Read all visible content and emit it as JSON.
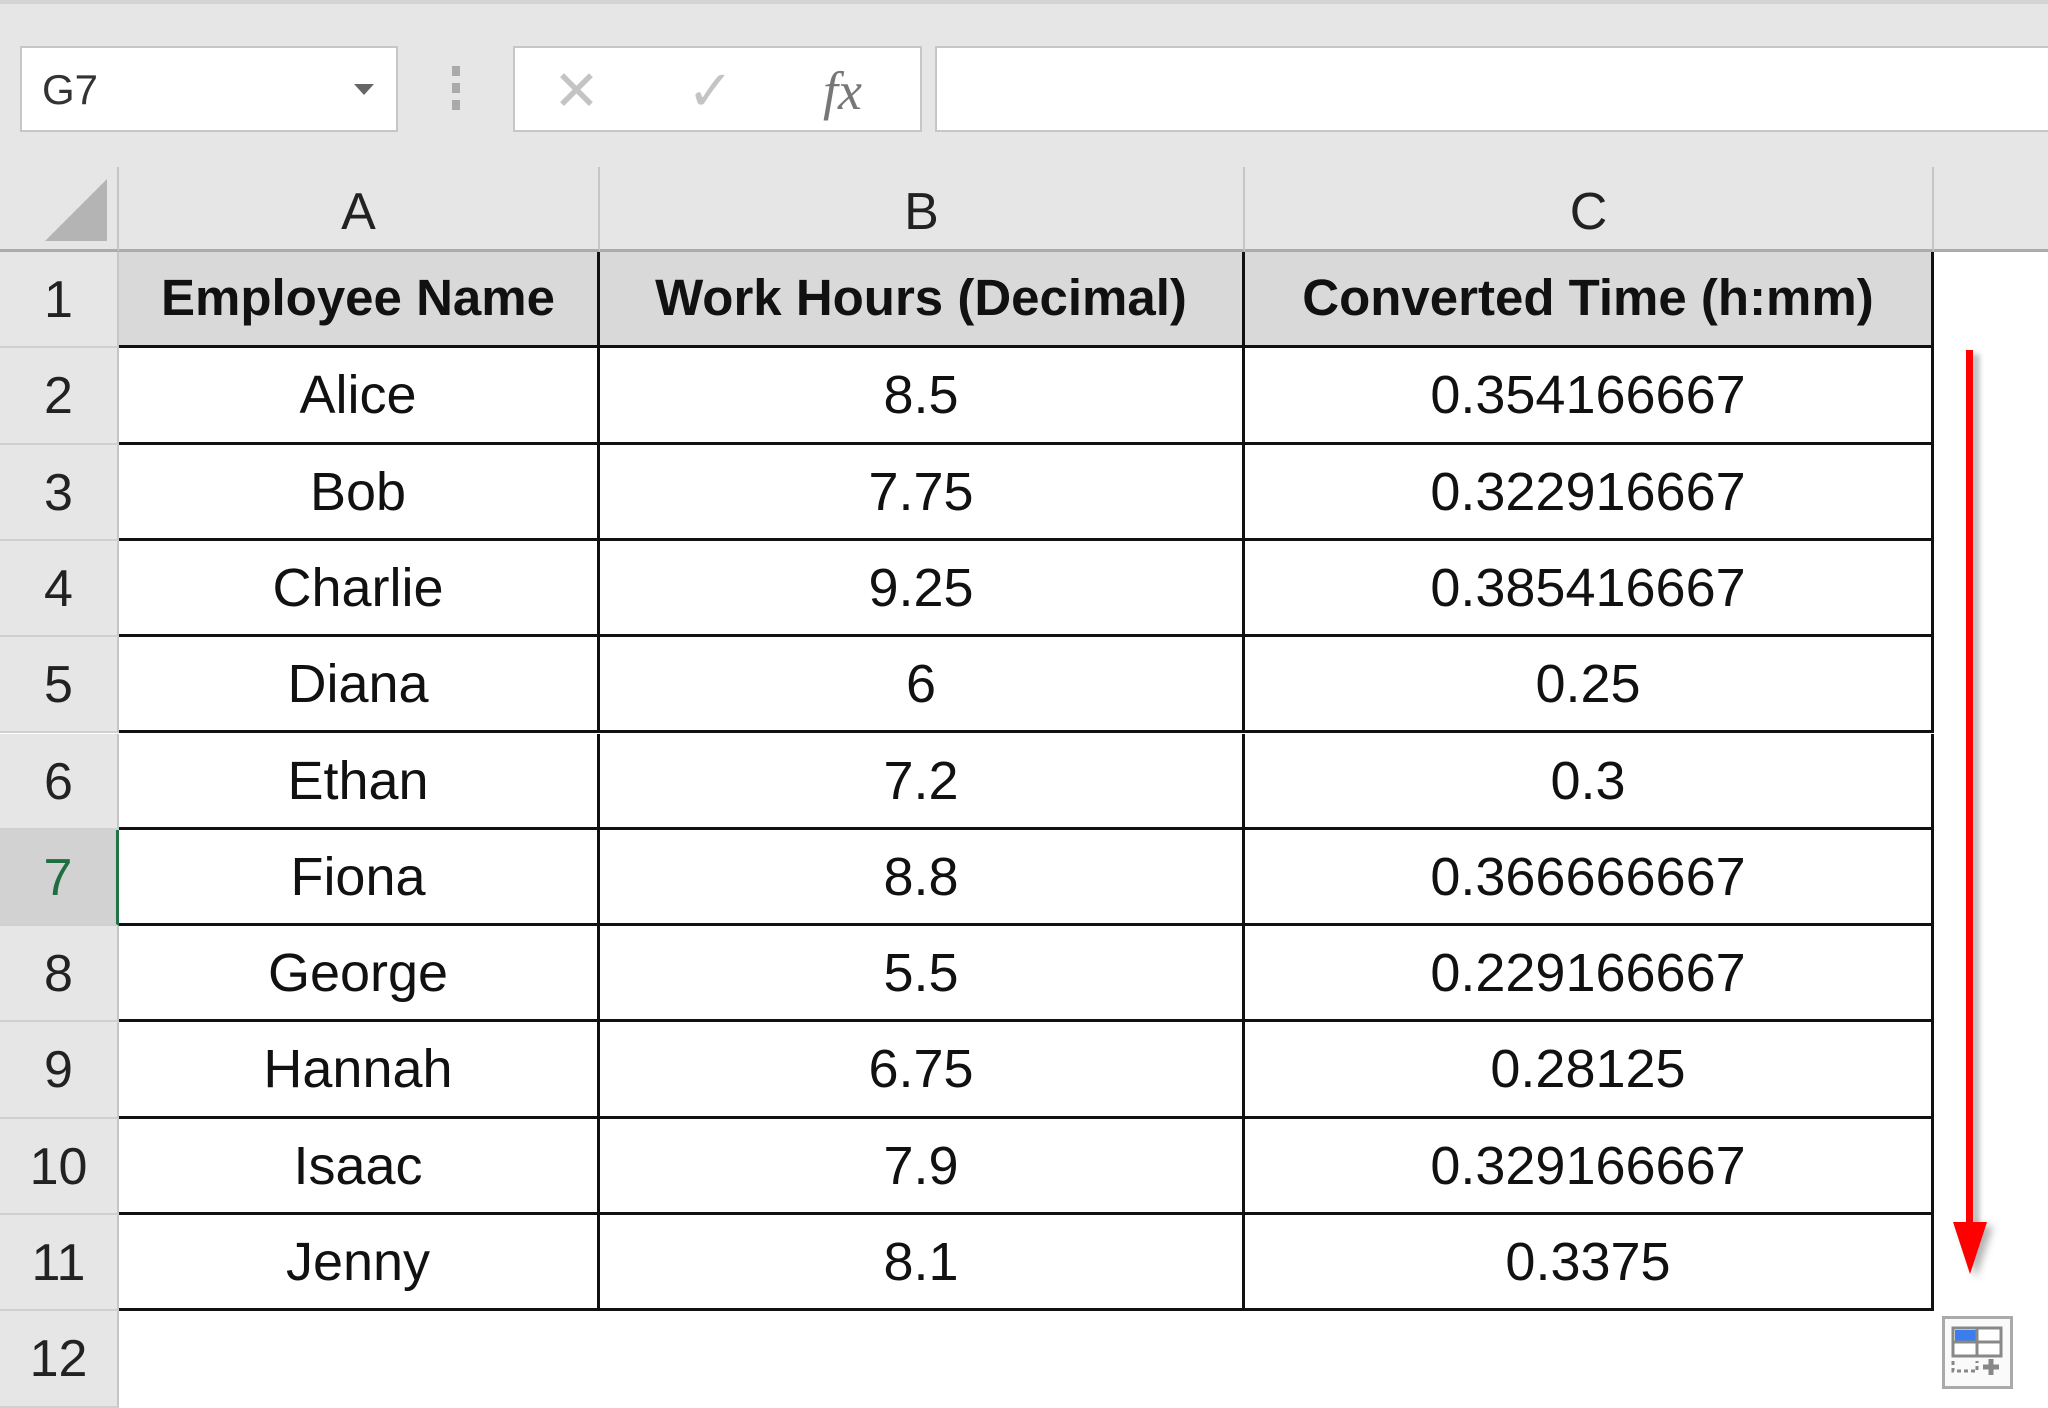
{
  "formula_bar": {
    "name_box": "G7",
    "cancel_icon": "✕",
    "enter_icon": "✓",
    "fx_label": "fx",
    "formula": ""
  },
  "columns": [
    "A",
    "B",
    "C"
  ],
  "rows": [
    "1",
    "2",
    "3",
    "4",
    "5",
    "6",
    "7",
    "8",
    "9",
    "10",
    "11",
    "12"
  ],
  "selected_row": "7",
  "table": {
    "headers": [
      "Employee Name",
      "Work Hours (Decimal)",
      "Converted Time (h:mm)"
    ],
    "data": [
      [
        "Alice",
        "8.5",
        "0.354166667"
      ],
      [
        "Bob",
        "7.75",
        "0.322916667"
      ],
      [
        "Charlie",
        "9.25",
        "0.385416667"
      ],
      [
        "Diana",
        "6",
        "0.25"
      ],
      [
        "Ethan",
        "7.2",
        "0.3"
      ],
      [
        "Fiona",
        "8.8",
        "0.366666667"
      ],
      [
        "George",
        "5.5",
        "0.229166667"
      ],
      [
        "Hannah",
        "6.75",
        "0.28125"
      ],
      [
        "Isaac",
        "7.9",
        "0.329166667"
      ],
      [
        "Jenny",
        "8.1",
        "0.3375"
      ]
    ]
  },
  "annotation": {
    "arrow_direction": "down",
    "arrow_color": "#ff0000"
  },
  "colors": {
    "header_fill": "#d9d9d9",
    "selection_accent": "#217346"
  }
}
